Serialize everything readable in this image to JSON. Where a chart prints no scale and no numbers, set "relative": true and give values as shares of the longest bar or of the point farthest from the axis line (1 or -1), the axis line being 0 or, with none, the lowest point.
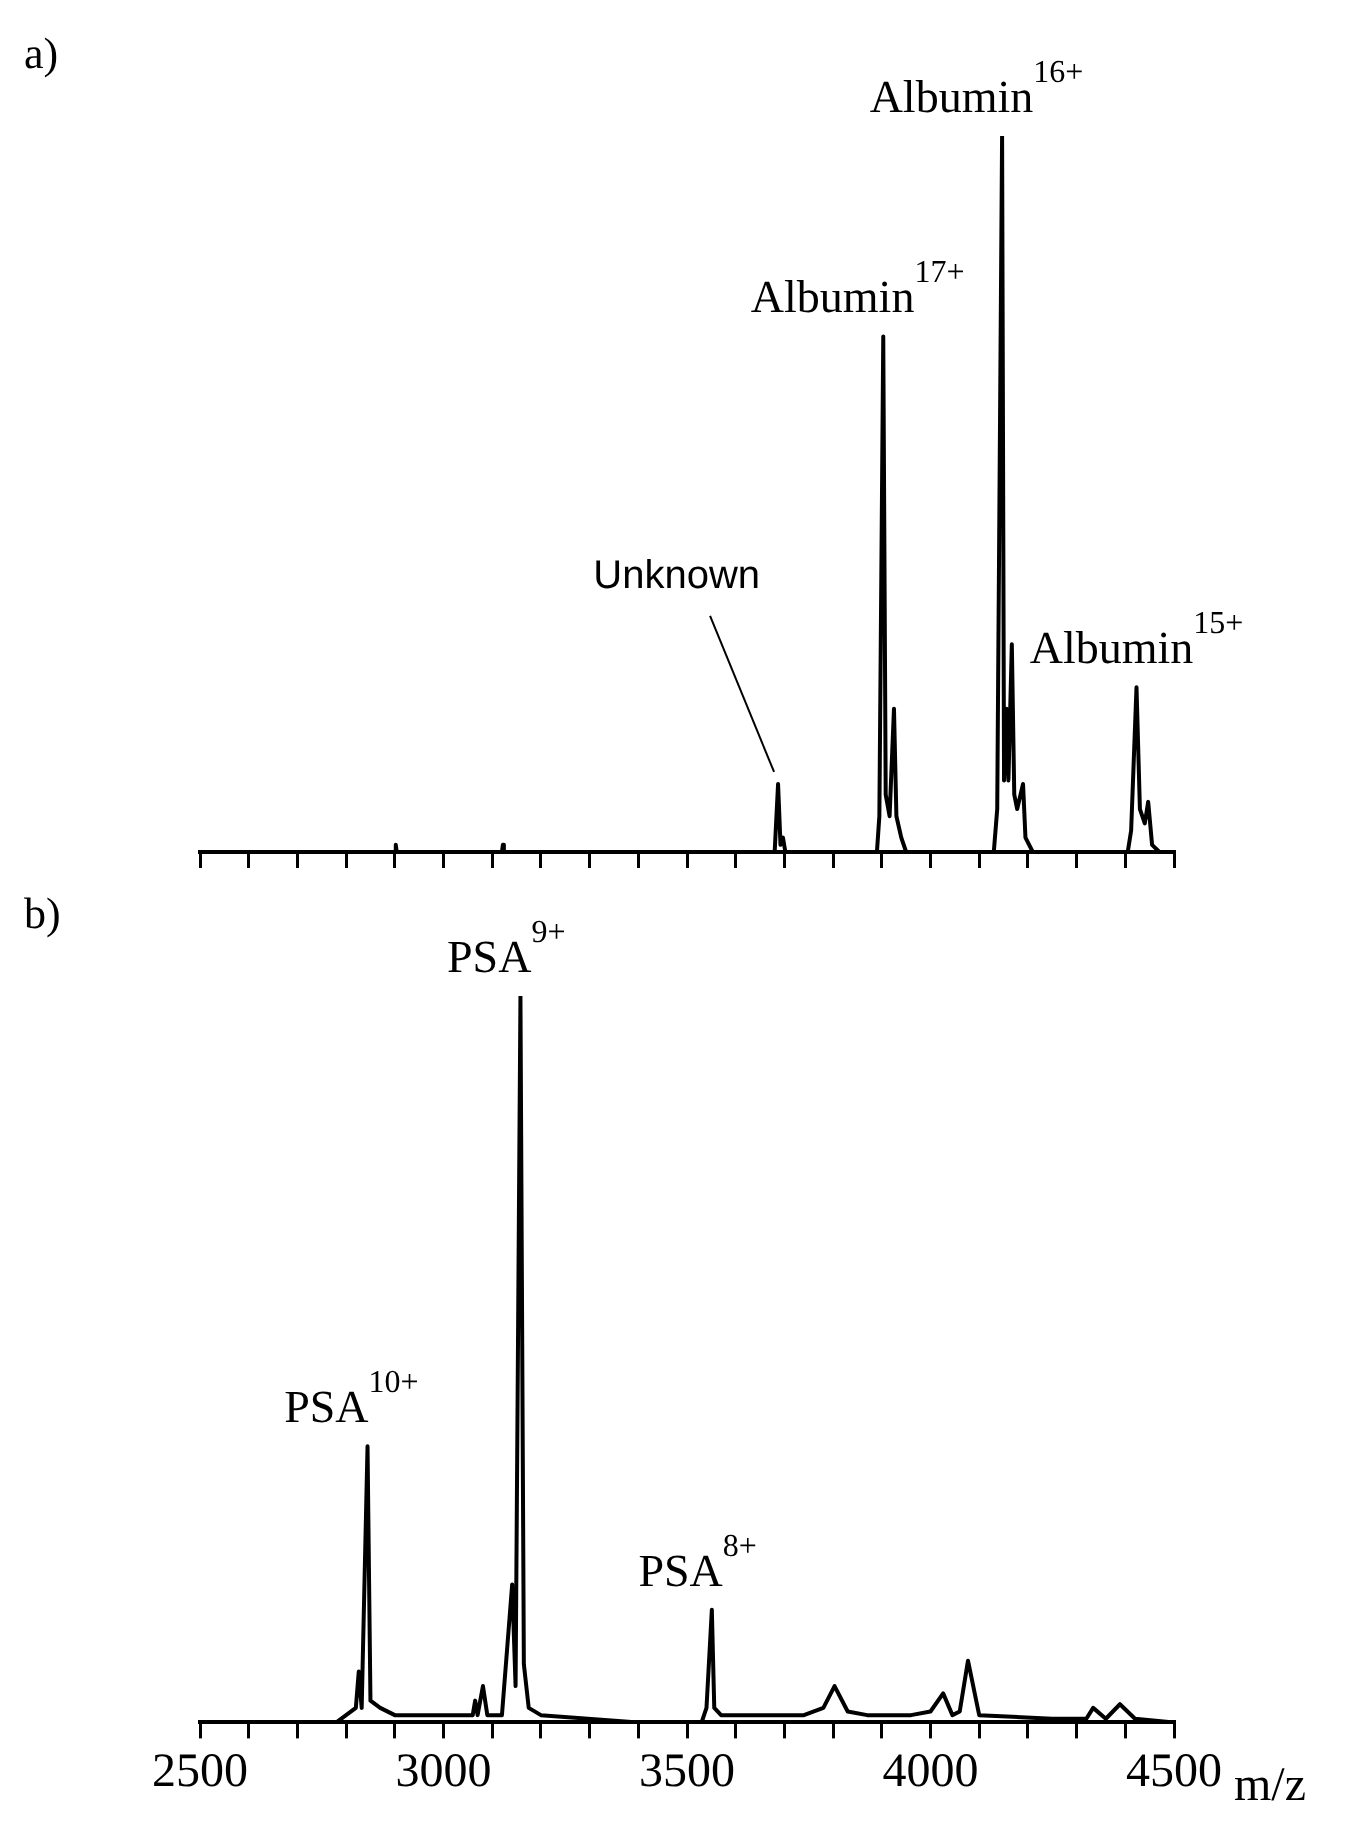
{
  "chart_data": [
    {
      "type": "line",
      "title": "a)",
      "relative": true,
      "grid": false,
      "legend": false,
      "marker": "none",
      "line_style": "solid",
      "tick_labels": false,
      "xlim": [
        2500,
        4500
      ],
      "xticks": [
        {
          "value": 2500,
          "label": null
        },
        {
          "value": 2600,
          "label": null
        },
        {
          "value": 2700,
          "label": null
        },
        {
          "value": 2800,
          "label": null
        },
        {
          "value": 2900,
          "label": null
        },
        {
          "value": 3000,
          "label": null
        },
        {
          "value": 3100,
          "label": null
        },
        {
          "value": 3200,
          "label": null
        },
        {
          "value": 3300,
          "label": null
        },
        {
          "value": 3400,
          "label": null
        },
        {
          "value": 3500,
          "label": null
        },
        {
          "value": 3600,
          "label": null
        },
        {
          "value": 3700,
          "label": null
        },
        {
          "value": 3800,
          "label": null
        },
        {
          "value": 3900,
          "label": null
        },
        {
          "value": 4000,
          "label": null
        },
        {
          "value": 4100,
          "label": null
        },
        {
          "value": 4200,
          "label": null
        },
        {
          "value": 4300,
          "label": null
        },
        {
          "value": 4400,
          "label": null
        },
        {
          "value": 4500,
          "label": null
        }
      ],
      "series": [
        {
          "color": "#000000",
          "x": [
            2500,
            2900,
            2902,
            2904,
            3120,
            3122,
            3124,
            3680,
            3687,
            3692,
            3697,
            3702,
            3890,
            3895,
            3903,
            3908,
            3916,
            3925,
            3930,
            3940,
            3950,
            4130,
            4137,
            4147,
            4151,
            4156,
            4160,
            4167,
            4172,
            4178,
            4190,
            4195,
            4210,
            4405,
            4412,
            4423,
            4430,
            4440,
            4447,
            4455,
            4470,
            4500
          ],
          "values": [
            0,
            0,
            0.01,
            0,
            0,
            0.01,
            0,
            0,
            0.095,
            0.01,
            0.02,
            0,
            0,
            0.05,
            0.72,
            0.08,
            0.05,
            0.2,
            0.05,
            0.02,
            0,
            0,
            0.06,
            1.0,
            0.1,
            0.2,
            0.1,
            0.29,
            0.08,
            0.06,
            0.095,
            0.02,
            0,
            0,
            0.03,
            0.23,
            0.06,
            0.04,
            0.07,
            0.01,
            0,
            0
          ]
        }
      ],
      "annotations": [
        {
          "text": "Unknown",
          "x": 3687,
          "y": 0.095
        },
        {
          "text": "Albumin$^{17+}$",
          "x": 3903,
          "y": 0.72
        },
        {
          "text": "Albumin$^{16+}$",
          "x": 4147,
          "y": 1.0
        },
        {
          "text": "Albumin$^{15+}$",
          "x": 4423,
          "y": 0.23
        }
      ]
    },
    {
      "type": "line",
      "title": "b)",
      "xlabel": "m/z",
      "relative": true,
      "grid": false,
      "legend": false,
      "marker": "none",
      "line_style": "solid",
      "tick_labels": "x",
      "xlim": [
        2500,
        4500
      ],
      "xticks": [
        2500,
        {
          "value": 2600,
          "label": null
        },
        {
          "value": 2700,
          "label": null
        },
        {
          "value": 2800,
          "label": null
        },
        {
          "value": 2900,
          "label": null
        },
        3000,
        {
          "value": 3100,
          "label": null
        },
        {
          "value": 3200,
          "label": null
        },
        {
          "value": 3300,
          "label": null
        },
        {
          "value": 3400,
          "label": null
        },
        3500,
        {
          "value": 3600,
          "label": null
        },
        {
          "value": 3700,
          "label": null
        },
        {
          "value": 3800,
          "label": null
        },
        {
          "value": 3900,
          "label": null
        },
        4000,
        {
          "value": 4100,
          "label": null
        },
        {
          "value": 4200,
          "label": null
        },
        {
          "value": 4300,
          "label": null
        },
        {
          "value": 4400,
          "label": null
        },
        4500
      ],
      "series": [
        {
          "color": "#000000",
          "x": [
            2500,
            2780,
            2800,
            2820,
            2826,
            2832,
            2844,
            2850,
            2870,
            2900,
            3000,
            3060,
            3065,
            3070,
            3081,
            3090,
            3120,
            3141,
            3148,
            3158,
            3165,
            3175,
            3200,
            3400,
            3530,
            3540,
            3551,
            3556,
            3570,
            3740,
            3780,
            3803,
            3830,
            3870,
            3960,
            4000,
            4026,
            4045,
            4060,
            4077,
            4100,
            4250,
            4320,
            4334,
            4360,
            4389,
            4420,
            4500
          ],
          "values": [
            0,
            0,
            0.01,
            0.02,
            0.07,
            0.02,
            0.38,
            0.03,
            0.02,
            0.01,
            0.01,
            0.01,
            0.03,
            0.01,
            0.05,
            0.01,
            0.01,
            0.19,
            0.05,
            1.0,
            0.08,
            0.02,
            0.01,
            0,
            0,
            0.02,
            0.155,
            0.02,
            0.01,
            0.01,
            0.02,
            0.05,
            0.015,
            0.01,
            0.01,
            0.015,
            0.04,
            0.01,
            0.015,
            0.085,
            0.01,
            0.005,
            0.005,
            0.02,
            0.005,
            0.025,
            0.005,
            0
          ]
        }
      ],
      "annotations": [
        {
          "text": "PSA$^{10+}$",
          "x": 2844,
          "y": 0.38
        },
        {
          "text": "PSA$^{9+}$",
          "x": 3158,
          "y": 1.0
        },
        {
          "text": "PSA$^{8+}$",
          "x": 3551,
          "y": 0.155
        }
      ]
    }
  ]
}
